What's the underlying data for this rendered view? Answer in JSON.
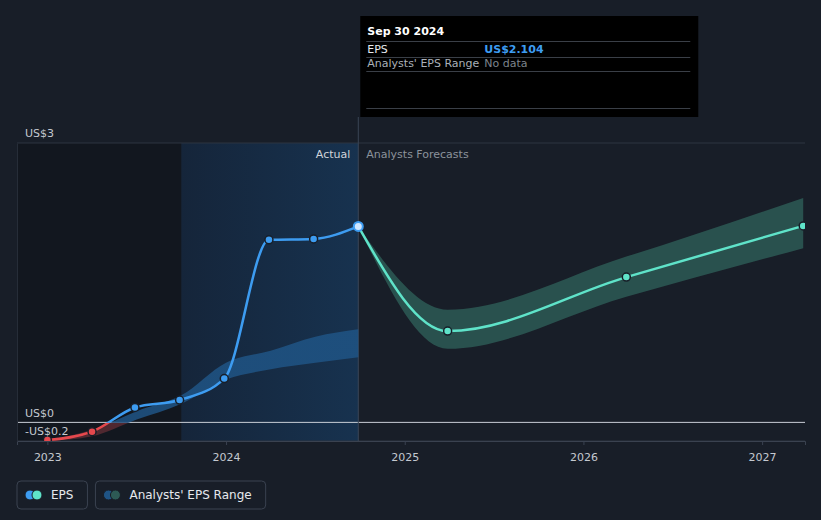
{
  "chart_data": {
    "type": "line",
    "xlim": [
      2022.83,
      2027.24
    ],
    "xticks": [
      2023,
      2024,
      2025,
      2026,
      2027
    ],
    "ylim": [
      -0.2,
      3
    ],
    "yticks": [
      {
        "value": 3,
        "label": "US$3"
      },
      {
        "value": 0,
        "label": "US$0"
      },
      {
        "value": -0.2,
        "label": "-US$0.2"
      }
    ],
    "grid": true,
    "legend": "bottom-left",
    "annotations": [
      "Actual",
      "Analysts Forecasts"
    ],
    "highlight_x": [
      2023.75,
      2024.74
    ],
    "tooltip": {
      "title": "Sep 30 2024",
      "rows": [
        {
          "label": "EPS",
          "value": "US$2.104"
        },
        {
          "label": "Analysts' EPS Range",
          "value": "No data"
        }
      ]
    },
    "series": [
      {
        "name": "EPS",
        "type": "line",
        "marker": "circle",
        "colors": [
          "#3d9cf1",
          "#5fe3c9"
        ],
        "x": [
          2023.0,
          2023.25,
          2023.49,
          2023.74,
          2023.99,
          2024.24,
          2024.49,
          2024.74
        ],
        "values": [
          -0.19,
          -0.1,
          0.16,
          0.24,
          0.47,
          1.96,
          1.97,
          2.104
        ],
        "forecast_x": [
          2024.74,
          2025.24,
          2026.24,
          2027.23
        ],
        "forecast_values": [
          2.104,
          0.98,
          1.56,
          2.11
        ]
      },
      {
        "name": "Analysts' EPS Range",
        "type": "area",
        "colors": [
          "#1f5485",
          "#2d5a55"
        ],
        "x": [
          2023.0,
          2023.25,
          2023.5,
          2023.75,
          2024.0,
          2024.25,
          2024.5,
          2024.74
        ],
        "low": [
          -0.2,
          -0.15,
          0.03,
          0.2,
          0.46,
          0.57,
          0.64,
          0.7
        ],
        "high": [
          -0.19,
          -0.08,
          0.12,
          0.29,
          0.64,
          0.77,
          0.92,
          1.0
        ],
        "forecast_x": [
          2024.74,
          2025.24,
          2026.24,
          2027.23
        ],
        "forecast_low": [
          2.104,
          0.79,
          1.35,
          1.87
        ],
        "forecast_high": [
          2.104,
          1.21,
          1.78,
          2.41
        ]
      }
    ]
  }
}
